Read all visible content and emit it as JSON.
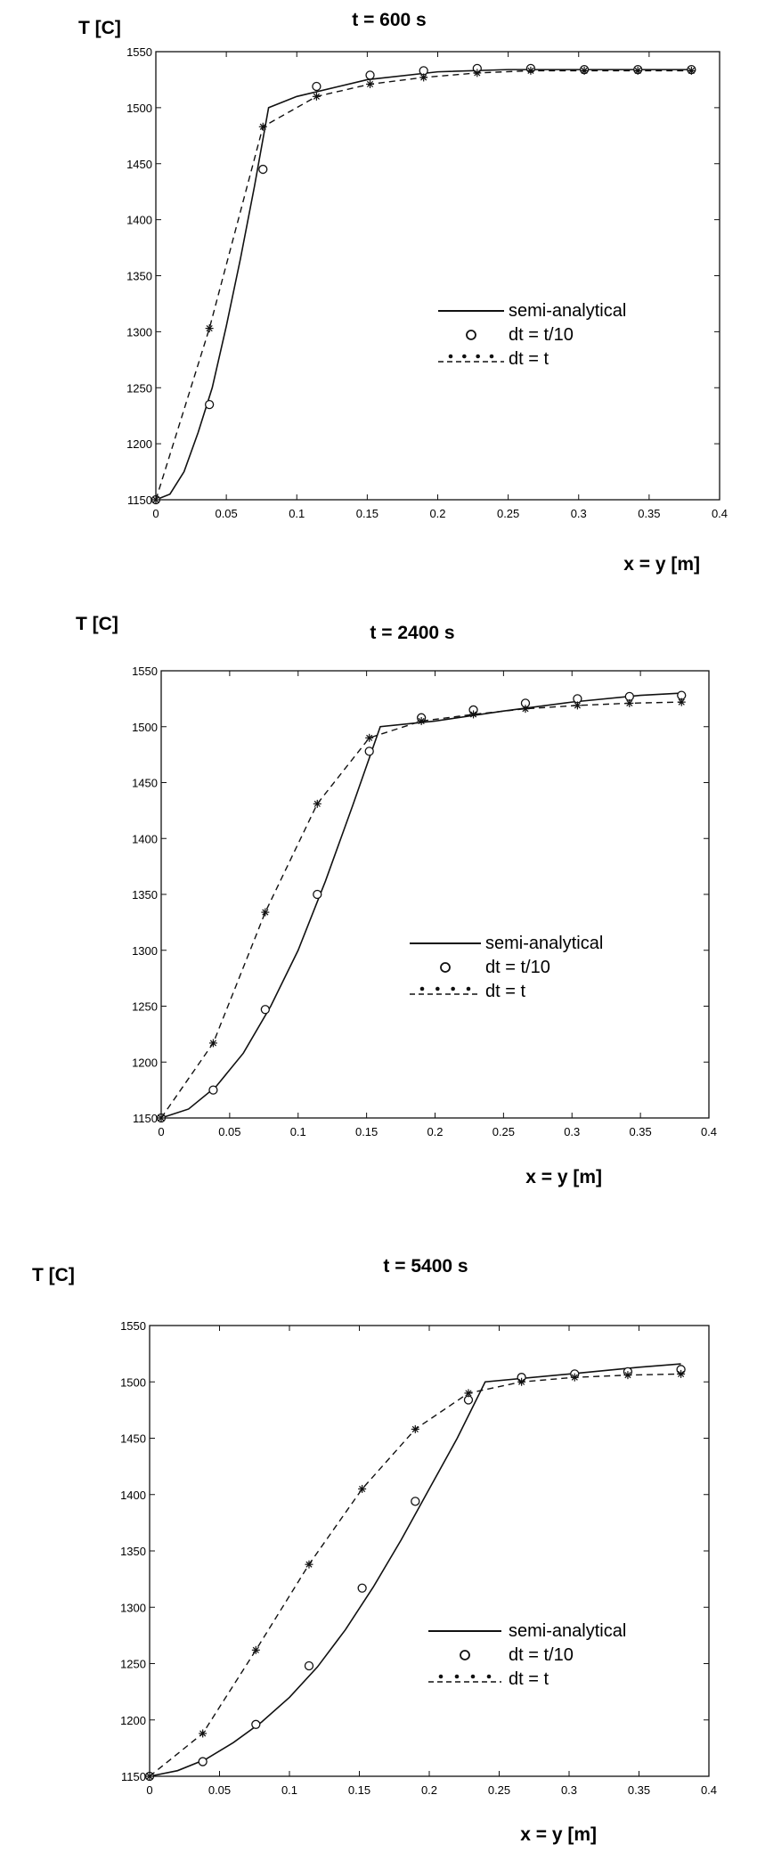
{
  "chart_data": [
    {
      "type": "line",
      "title": "t = 600 s",
      "xlabel": "x = y [m]",
      "ylabel": "T [C]",
      "xlim": [
        0,
        0.4
      ],
      "ylim": [
        1150,
        1550
      ],
      "xticks": [
        "0",
        "0.05",
        "0.1",
        "0.15",
        "0.2",
        "0.25",
        "0.3",
        "0.35",
        "0.4"
      ],
      "yticks": [
        "1150",
        "1200",
        "1250",
        "1300",
        "1350",
        "1400",
        "1450",
        "1500",
        "1550"
      ],
      "legend_position": "center-right",
      "series": [
        {
          "name": "semi-analytical",
          "style": "solid",
          "x": [
            0,
            0.01,
            0.02,
            0.03,
            0.04,
            0.05,
            0.06,
            0.07,
            0.08,
            0.1,
            0.15,
            0.2,
            0.25,
            0.3,
            0.35,
            0.38
          ],
          "y": [
            1150,
            1155,
            1175,
            1210,
            1250,
            1305,
            1365,
            1430,
            1500,
            1510,
            1525,
            1532,
            1534,
            1534,
            1534,
            1534
          ]
        },
        {
          "name": "dt = t/10",
          "style": "circle",
          "x": [
            0,
            0.038,
            0.076,
            0.114,
            0.152,
            0.19,
            0.228,
            0.266,
            0.304,
            0.342,
            0.38
          ],
          "y": [
            1150,
            1235,
            1445,
            1519,
            1529,
            1533,
            1535,
            1535,
            1534,
            1534,
            1534
          ]
        },
        {
          "name": "dt = t",
          "style": "dashed-star",
          "x": [
            0,
            0.038,
            0.076,
            0.114,
            0.152,
            0.19,
            0.228,
            0.266,
            0.304,
            0.342,
            0.38
          ],
          "y": [
            1150,
            1303,
            1483,
            1510,
            1521,
            1527,
            1531,
            1533,
            1533,
            1533,
            1533
          ]
        }
      ]
    },
    {
      "type": "line",
      "title": "t = 2400 s",
      "xlabel": "x = y [m]",
      "ylabel": "T [C]",
      "xlim": [
        0,
        0.4
      ],
      "ylim": [
        1150,
        1550
      ],
      "xticks": [
        "0",
        "0.05",
        "0.1",
        "0.15",
        "0.2",
        "0.25",
        "0.3",
        "0.35",
        "0.4"
      ],
      "yticks": [
        "1150",
        "1200",
        "1250",
        "1300",
        "1350",
        "1400",
        "1450",
        "1500",
        "1550"
      ],
      "legend_position": "center-right",
      "series": [
        {
          "name": "semi-analytical",
          "style": "solid",
          "x": [
            0,
            0.02,
            0.04,
            0.06,
            0.08,
            0.1,
            0.12,
            0.14,
            0.16,
            0.2,
            0.25,
            0.3,
            0.35,
            0.38
          ],
          "y": [
            1150,
            1158,
            1178,
            1208,
            1250,
            1300,
            1362,
            1430,
            1500,
            1505,
            1514,
            1522,
            1528,
            1530
          ]
        },
        {
          "name": "dt = t/10",
          "style": "circle",
          "x": [
            0,
            0.038,
            0.076,
            0.114,
            0.152,
            0.19,
            0.228,
            0.266,
            0.304,
            0.342,
            0.38
          ],
          "y": [
            1150,
            1175,
            1247,
            1350,
            1478,
            1508,
            1515,
            1521,
            1525,
            1527,
            1528
          ]
        },
        {
          "name": "dt = t",
          "style": "dashed-star",
          "x": [
            0,
            0.038,
            0.076,
            0.114,
            0.152,
            0.19,
            0.228,
            0.266,
            0.304,
            0.342,
            0.38
          ],
          "y": [
            1150,
            1217,
            1334,
            1431,
            1490,
            1505,
            1511,
            1516,
            1519,
            1521,
            1522
          ]
        }
      ]
    },
    {
      "type": "line",
      "title": "t = 5400 s",
      "xlabel": "x = y [m]",
      "ylabel": "T [C]",
      "xlim": [
        0,
        0.4
      ],
      "ylim": [
        1150,
        1550
      ],
      "xticks": [
        "0",
        "0.05",
        "0.1",
        "0.15",
        "0.2",
        "0.25",
        "0.3",
        "0.35",
        "0.4"
      ],
      "yticks": [
        "1150",
        "1200",
        "1250",
        "1300",
        "1350",
        "1400",
        "1450",
        "1500",
        "1550"
      ],
      "legend_position": "lower-right",
      "series": [
        {
          "name": "semi-analytical",
          "style": "solid",
          "x": [
            0,
            0.02,
            0.04,
            0.06,
            0.08,
            0.1,
            0.12,
            0.14,
            0.16,
            0.18,
            0.2,
            0.22,
            0.24,
            0.3,
            0.35,
            0.38
          ],
          "y": [
            1150,
            1155,
            1165,
            1180,
            1198,
            1220,
            1247,
            1280,
            1318,
            1360,
            1405,
            1450,
            1500,
            1507,
            1513,
            1516
          ]
        },
        {
          "name": "dt = t/10",
          "style": "circle",
          "x": [
            0,
            0.038,
            0.076,
            0.114,
            0.152,
            0.19,
            0.228,
            0.266,
            0.304,
            0.342,
            0.38
          ],
          "y": [
            1150,
            1163,
            1196,
            1248,
            1317,
            1394,
            1484,
            1504,
            1507,
            1509,
            1511
          ]
        },
        {
          "name": "dt = t",
          "style": "dashed-star",
          "x": [
            0,
            0.038,
            0.076,
            0.114,
            0.152,
            0.19,
            0.228,
            0.266,
            0.304,
            0.342,
            0.38
          ],
          "y": [
            1150,
            1188,
            1262,
            1338,
            1405,
            1458,
            1490,
            1500,
            1504,
            1506,
            1507
          ]
        }
      ]
    }
  ]
}
